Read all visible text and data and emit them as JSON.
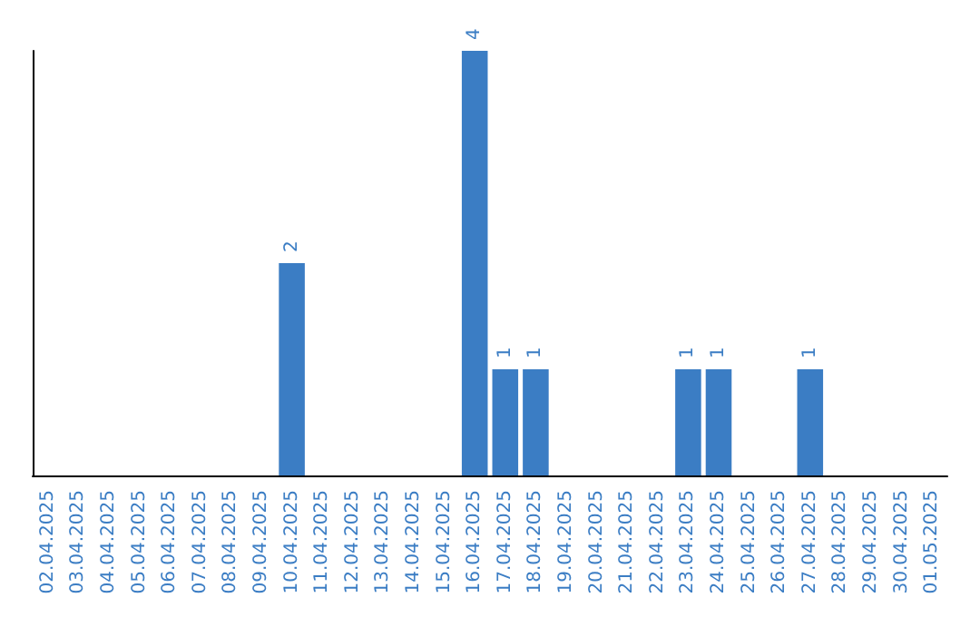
{
  "chart_data": {
    "type": "bar",
    "categories": [
      "02.04.2025",
      "03.04.2025",
      "04.04.2025",
      "05.04.2025",
      "06.04.2025",
      "07.04.2025",
      "08.04.2025",
      "09.04.2025",
      "10.04.2025",
      "11.04.2025",
      "12.04.2025",
      "13.04.2025",
      "14.04.2025",
      "15.04.2025",
      "16.04.2025",
      "17.04.2025",
      "18.04.2025",
      "19.04.2025",
      "20.04.2025",
      "21.04.2025",
      "22.04.2025",
      "23.04.2025",
      "24.04.2025",
      "25.04.2025",
      "26.04.2025",
      "27.04.2025",
      "28.04.2025",
      "29.04.2025",
      "30.04.2025",
      "01.05.2025"
    ],
    "values": [
      0,
      0,
      0,
      0,
      0,
      0,
      0,
      0,
      2,
      0,
      0,
      0,
      0,
      0,
      4,
      1,
      1,
      0,
      0,
      0,
      0,
      1,
      1,
      0,
      0,
      1,
      0,
      0,
      0,
      0
    ],
    "value_labels": [
      null,
      null,
      null,
      null,
      null,
      null,
      null,
      null,
      "2",
      null,
      null,
      null,
      null,
      null,
      "4",
      "1",
      "1",
      null,
      null,
      null,
      null,
      "1",
      "1",
      null,
      null,
      "1",
      null,
      null,
      null,
      null
    ],
    "color": "#3b7dc4",
    "grid": false,
    "tick_labels": "x"
  }
}
